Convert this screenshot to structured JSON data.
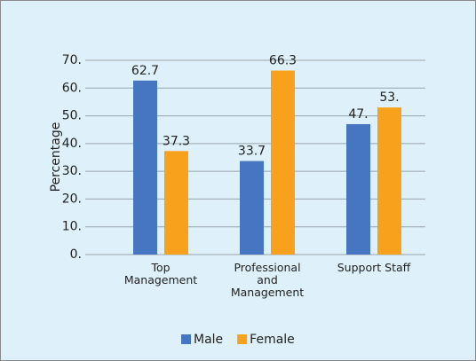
{
  "chart_data": {
    "type": "bar",
    "categories": [
      "Top Management",
      "Professional and Management",
      "Support Staff"
    ],
    "y_label": "Percentage",
    "series": [
      {
        "name": "Male",
        "color": "#4676c2",
        "values": [
          62.7,
          33.7,
          47
        ],
        "value_labels": [
          "62.7",
          "33.7",
          "47."
        ]
      },
      {
        "name": "Female",
        "color": "#f8a11c",
        "values": [
          37.3,
          66.3,
          53
        ],
        "value_labels": [
          "37.3",
          "66.3",
          "53."
        ]
      }
    ],
    "ylim": [
      0,
      70
    ],
    "yticks": [
      {
        "value": 0,
        "label": "0."
      },
      {
        "value": 10,
        "label": "10."
      },
      {
        "value": 20,
        "label": "20."
      },
      {
        "value": 30,
        "label": "30."
      },
      {
        "value": 40,
        "label": "40."
      },
      {
        "value": 50,
        "label": "50."
      },
      {
        "value": 60,
        "label": "60."
      },
      {
        "value": 70,
        "label": "70."
      }
    ],
    "grid": true,
    "legend": "bottom"
  }
}
